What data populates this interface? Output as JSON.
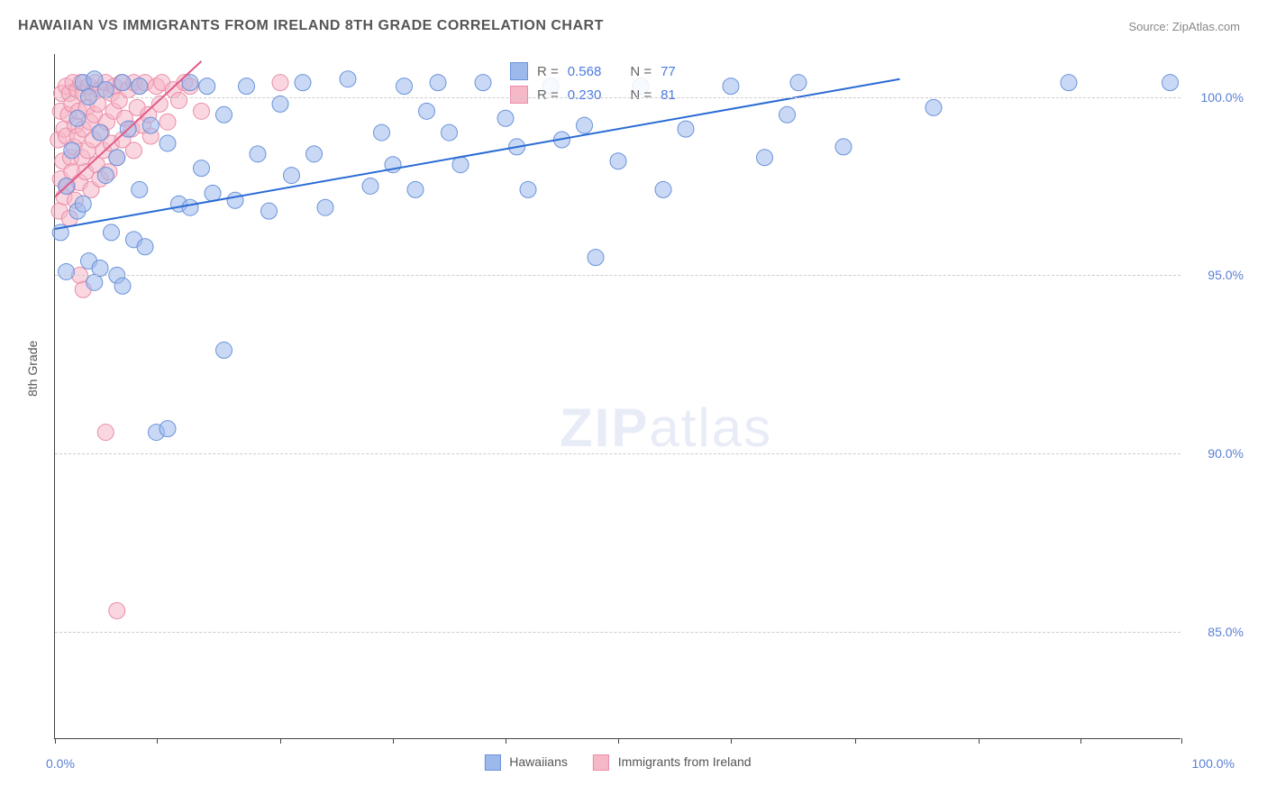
{
  "title": "HAWAIIAN VS IMMIGRANTS FROM IRELAND 8TH GRADE CORRELATION CHART",
  "source": "Source: ZipAtlas.com",
  "watermark_bold": "ZIP",
  "watermark_light": "atlas",
  "y_axis_label": "8th Grade",
  "chart": {
    "type": "scatter",
    "background_color": "#ffffff",
    "grid_color": "#cccccc",
    "axis_color": "#444444",
    "text_color": "#555555",
    "tick_label_color": "#5b7fd4",
    "xlim": [
      0,
      100
    ],
    "ylim": [
      82,
      101.2
    ],
    "x_ticks": [
      0,
      9,
      20,
      30,
      40,
      50,
      60,
      71,
      82,
      91,
      100
    ],
    "x_tick_labels": {
      "0": "0.0%",
      "100": "100.0%"
    },
    "y_ticks": [
      85,
      90,
      95,
      100
    ],
    "y_tick_labels": {
      "85": "85.0%",
      "90": "90.0%",
      "95": "95.0%",
      "100": "100.0%"
    },
    "marker_radius": 9,
    "marker_opacity": 0.55,
    "line_width": 2,
    "series": [
      {
        "name": "Hawaiians",
        "color_fill": "#9db9ec",
        "color_stroke": "#6a92da",
        "line_color": "#2a6bd4",
        "r_value": "0.568",
        "n_value": "77",
        "regression": {
          "x1": 0,
          "y1": 96.3,
          "x2": 75,
          "y2": 100.5
        },
        "points": [
          [
            0.5,
            96.2
          ],
          [
            1,
            95.1
          ],
          [
            1,
            97.5
          ],
          [
            1.5,
            98.5
          ],
          [
            2,
            96.8
          ],
          [
            2,
            99.4
          ],
          [
            2.5,
            100.4
          ],
          [
            2.5,
            97
          ],
          [
            3,
            95.4
          ],
          [
            3.5,
            100.5
          ],
          [
            3.5,
            94.8
          ],
          [
            4,
            99
          ],
          [
            4,
            95.2
          ],
          [
            4.5,
            97.8
          ],
          [
            4.5,
            100.2
          ],
          [
            5,
            96.2
          ],
          [
            5.5,
            98.3
          ],
          [
            5.5,
            95
          ],
          [
            6,
            94.7
          ],
          [
            6,
            100.4
          ],
          [
            6.5,
            99.1
          ],
          [
            7,
            96
          ],
          [
            7.5,
            97.4
          ],
          [
            7.5,
            100.3
          ],
          [
            8,
            95.8
          ],
          [
            8.5,
            99.2
          ],
          [
            9,
            90.6
          ],
          [
            10,
            90.7
          ],
          [
            10,
            98.7
          ],
          [
            11,
            97
          ],
          [
            12,
            100.4
          ],
          [
            12,
            96.9
          ],
          [
            13,
            98
          ],
          [
            13.5,
            100.3
          ],
          [
            14,
            97.3
          ],
          [
            15,
            92.9
          ],
          [
            15,
            99.5
          ],
          [
            16,
            97.1
          ],
          [
            17,
            100.3
          ],
          [
            18,
            98.4
          ],
          [
            19,
            96.8
          ],
          [
            20,
            99.8
          ],
          [
            21,
            97.8
          ],
          [
            22,
            100.4
          ],
          [
            23,
            98.4
          ],
          [
            24,
            96.9
          ],
          [
            26,
            100.5
          ],
          [
            28,
            97.5
          ],
          [
            29,
            99
          ],
          [
            30,
            98.1
          ],
          [
            31,
            100.3
          ],
          [
            32,
            97.4
          ],
          [
            33,
            99.6
          ],
          [
            34,
            100.4
          ],
          [
            35,
            99
          ],
          [
            36,
            98.1
          ],
          [
            38,
            100.4
          ],
          [
            40,
            99.4
          ],
          [
            41,
            98.6
          ],
          [
            42,
            97.4
          ],
          [
            44,
            100.3
          ],
          [
            45,
            98.8
          ],
          [
            47,
            99.2
          ],
          [
            48,
            95.5
          ],
          [
            50,
            98.2
          ],
          [
            52,
            100.3
          ],
          [
            54,
            97.4
          ],
          [
            56,
            99.1
          ],
          [
            60,
            100.3
          ],
          [
            63,
            98.3
          ],
          [
            65,
            99.5
          ],
          [
            66,
            100.4
          ],
          [
            70,
            98.6
          ],
          [
            78,
            99.7
          ],
          [
            90,
            100.4
          ],
          [
            3,
            100
          ],
          [
            99,
            100.4
          ]
        ]
      },
      {
        "name": "Immigrants from Ireland",
        "color_fill": "#f6b7c7",
        "color_stroke": "#eb8da8",
        "line_color": "#e05a88",
        "r_value": "0.230",
        "n_value": "81",
        "regression": {
          "x1": 0,
          "y1": 97.2,
          "x2": 13,
          "y2": 101
        },
        "points": [
          [
            0.3,
            98.8
          ],
          [
            0.4,
            96.8
          ],
          [
            0.5,
            99.6
          ],
          [
            0.5,
            97.7
          ],
          [
            0.6,
            100.1
          ],
          [
            0.7,
            98.2
          ],
          [
            0.8,
            99.1
          ],
          [
            0.8,
            97.2
          ],
          [
            1,
            100.3
          ],
          [
            1,
            98.9
          ],
          [
            1.1,
            97.5
          ],
          [
            1.2,
            99.5
          ],
          [
            1.3,
            96.6
          ],
          [
            1.3,
            100.1
          ],
          [
            1.4,
            98.3
          ],
          [
            1.5,
            99.8
          ],
          [
            1.5,
            97.9
          ],
          [
            1.6,
            100.4
          ],
          [
            1.7,
            98.6
          ],
          [
            1.8,
            99.2
          ],
          [
            1.8,
            97.1
          ],
          [
            2,
            100.2
          ],
          [
            2,
            98.9
          ],
          [
            2.1,
            99.6
          ],
          [
            2.2,
            97.6
          ],
          [
            2.3,
            100.4
          ],
          [
            2.4,
            98.3
          ],
          [
            2.5,
            99.1
          ],
          [
            2.5,
            100.1
          ],
          [
            2.7,
            97.9
          ],
          [
            2.8,
            99.7
          ],
          [
            2.9,
            98.5
          ],
          [
            3,
            100.3
          ],
          [
            3.1,
            99.3
          ],
          [
            3.2,
            97.4
          ],
          [
            3.3,
            100.1
          ],
          [
            3.4,
            98.8
          ],
          [
            3.5,
            99.5
          ],
          [
            3.6,
            100.4
          ],
          [
            3.7,
            98.1
          ],
          [
            3.8,
            99.8
          ],
          [
            4,
            97.7
          ],
          [
            4,
            100.2
          ],
          [
            4.1,
            99
          ],
          [
            4.3,
            98.5
          ],
          [
            4.5,
            100.4
          ],
          [
            4.6,
            99.3
          ],
          [
            4.8,
            97.9
          ],
          [
            5,
            100.1
          ],
          [
            5,
            98.7
          ],
          [
            5.2,
            99.6
          ],
          [
            5.3,
            100.3
          ],
          [
            5.5,
            98.3
          ],
          [
            5.7,
            99.9
          ],
          [
            5.9,
            100.4
          ],
          [
            6,
            98.8
          ],
          [
            6.2,
            99.4
          ],
          [
            6.5,
            100.2
          ],
          [
            6.8,
            99.1
          ],
          [
            7,
            100.4
          ],
          [
            7,
            98.5
          ],
          [
            7.3,
            99.7
          ],
          [
            7.5,
            100.3
          ],
          [
            7.8,
            99.2
          ],
          [
            8,
            100.4
          ],
          [
            8.3,
            99.5
          ],
          [
            8.5,
            98.9
          ],
          [
            9,
            100.3
          ],
          [
            9.3,
            99.8
          ],
          [
            9.5,
            100.4
          ],
          [
            10,
            99.3
          ],
          [
            10.5,
            100.2
          ],
          [
            11,
            99.9
          ],
          [
            11.5,
            100.4
          ],
          [
            2.2,
            95
          ],
          [
            4.5,
            90.6
          ],
          [
            5.5,
            85.6
          ],
          [
            12,
            100.3
          ],
          [
            20,
            100.4
          ],
          [
            13,
            99.6
          ],
          [
            2.5,
            94.6
          ]
        ]
      }
    ]
  },
  "legend": {
    "series1": "Hawaiians",
    "series2": "Immigrants from Ireland"
  },
  "corr_labels": {
    "R": "R =",
    "N": "N ="
  }
}
